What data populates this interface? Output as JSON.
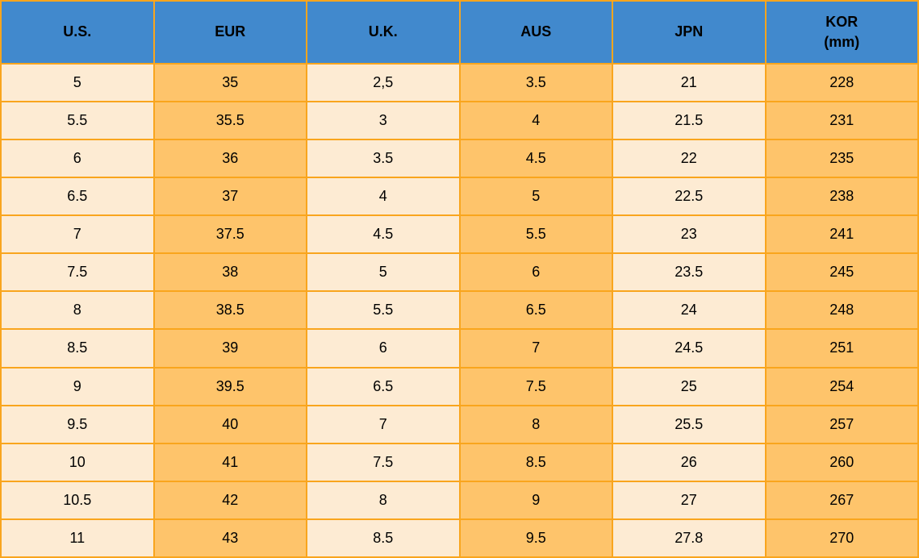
{
  "chart_data": {
    "type": "table",
    "columns": [
      {
        "label": "U.S."
      },
      {
        "label": "EUR"
      },
      {
        "label": "U.K."
      },
      {
        "label": "AUS"
      },
      {
        "label": "JPN"
      },
      {
        "label": "KOR",
        "sublabel": "(mm)"
      }
    ],
    "rows": [
      [
        "5",
        "35",
        "2,5",
        "3.5",
        "21",
        "228"
      ],
      [
        "5.5",
        "35.5",
        "3",
        "4",
        "21.5",
        "231"
      ],
      [
        "6",
        "36",
        "3.5",
        "4.5",
        "22",
        "235"
      ],
      [
        "6.5",
        "37",
        "4",
        "5",
        "22.5",
        "238"
      ],
      [
        "7",
        "37.5",
        "4.5",
        "5.5",
        "23",
        "241"
      ],
      [
        "7.5",
        "38",
        "5",
        "6",
        "23.5",
        "245"
      ],
      [
        "8",
        "38.5",
        "5.5",
        "6.5",
        "24",
        "248"
      ],
      [
        "8.5",
        "39",
        "6",
        "7",
        "24.5",
        "251"
      ],
      [
        "9",
        "39.5",
        "6.5",
        "7.5",
        "25",
        "254"
      ],
      [
        "9.5",
        "40",
        "7",
        "8",
        "25.5",
        "257"
      ],
      [
        "10",
        "41",
        "7.5",
        "8.5",
        "26",
        "260"
      ],
      [
        "10.5",
        "42",
        "8",
        "9",
        "27",
        "267"
      ],
      [
        "11",
        "43",
        "8.5",
        "9.5",
        "27.8",
        "270"
      ]
    ]
  },
  "colors": {
    "header_bg": "#4189cd",
    "cell_cream": "#fdebd3",
    "cell_orange": "#fec46b",
    "border": "#f9a51d",
    "text": "#000000"
  }
}
